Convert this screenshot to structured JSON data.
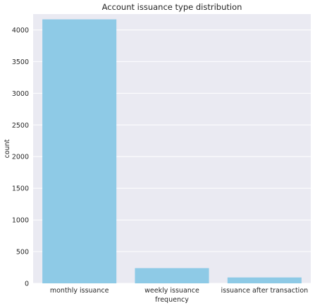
{
  "chart_data": {
    "type": "bar",
    "title": "Account issuance type distribution",
    "xlabel": "frequency",
    "ylabel": "count",
    "categories": [
      "monthly issuance",
      "weekly issuance",
      "issuance after transaction"
    ],
    "values": [
      4167,
      240,
      93
    ],
    "ylim": [
      0,
      4250
    ],
    "yticks": [
      0,
      500,
      1000,
      1500,
      2000,
      2500,
      3000,
      3500,
      4000
    ],
    "grid": true,
    "legend": "none",
    "colors": {
      "bar": "#8ecae6",
      "plot_background": "#eaeaf2",
      "grid": "#ffffff",
      "text": "#262626"
    }
  }
}
